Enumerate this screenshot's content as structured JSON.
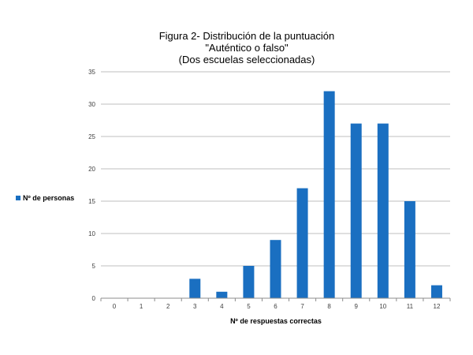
{
  "chart_data": {
    "type": "bar",
    "title": [
      "Figura 2- Distribución  de la puntuación",
      "\"Auténtico  o falso\"",
      "(Dos escuelas seleccionadas)"
    ],
    "xlabel": "Nº de respuestas correctas",
    "ylabel": "",
    "categories": [
      "0",
      "1",
      "2",
      "3",
      "4",
      "5",
      "6",
      "7",
      "8",
      "9",
      "10",
      "11",
      "12"
    ],
    "series": [
      {
        "name": "Nº de personas",
        "values": [
          0,
          0,
          0,
          3,
          1,
          5,
          9,
          17,
          32,
          27,
          27,
          15,
          2
        ]
      }
    ],
    "ylim": [
      0,
      35
    ],
    "yticks": [
      0,
      5,
      10,
      15,
      20,
      25,
      30,
      35
    ],
    "grid": true,
    "legend_position": "left",
    "colors": {
      "bar": "#1a6fc1",
      "grid": "#bfbfbf",
      "axis": "#8c8c8c"
    }
  }
}
